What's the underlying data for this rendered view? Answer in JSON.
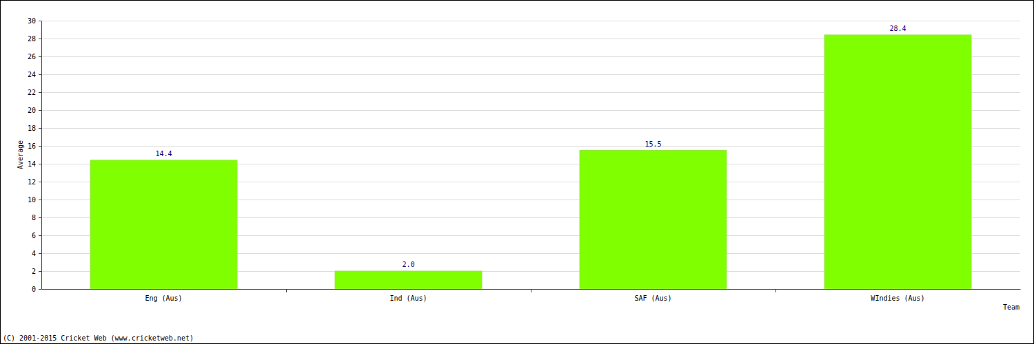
{
  "chart_data": {
    "type": "bar",
    "categories": [
      "Eng (Aus)",
      "Ind (Aus)",
      "SAF (Aus)",
      "WIndies (Aus)"
    ],
    "values": [
      14.4,
      2.0,
      15.5,
      28.4
    ],
    "value_labels": [
      "14.4",
      "2.0",
      "15.5",
      "28.4"
    ],
    "color": "#80ff00",
    "ylim": [
      0,
      30
    ],
    "yticks": [
      0,
      2,
      4,
      6,
      8,
      10,
      12,
      14,
      16,
      18,
      20,
      22,
      24,
      26,
      28,
      30
    ],
    "grid": true,
    "data_labels": true,
    "x_label": "Team",
    "y_label": "Average",
    "annotations": [
      "(C) 2001-2015 Cricket Web (www.cricketweb.net)"
    ]
  }
}
